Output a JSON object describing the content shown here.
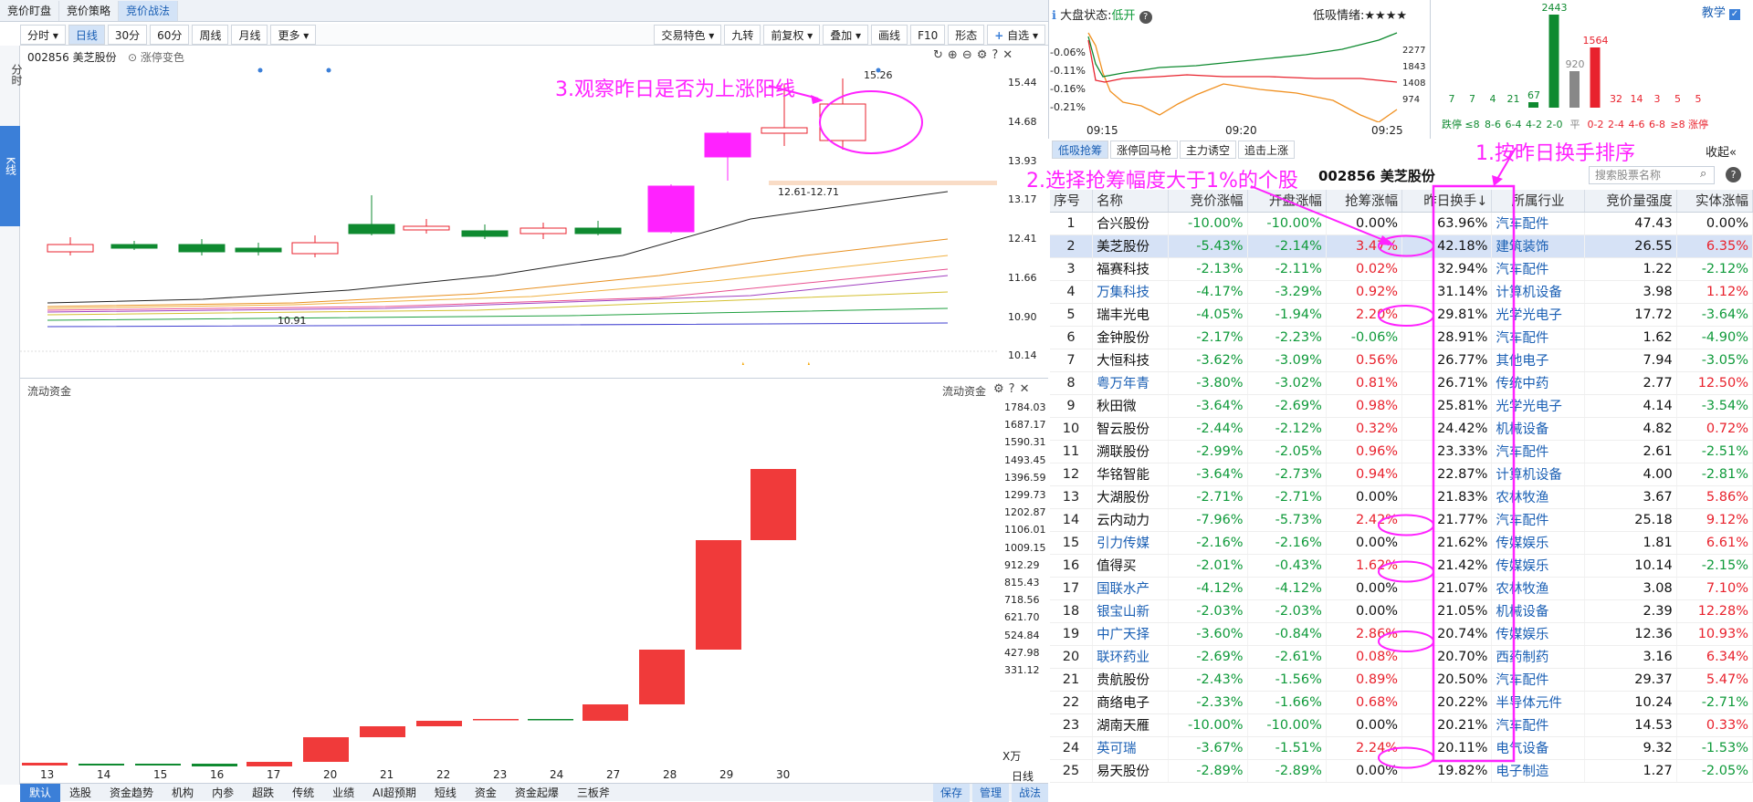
{
  "top_tabs": [
    "竞价盯盘",
    "竞价策略",
    "竞价战法"
  ],
  "teach_label": "教学",
  "toolbar": {
    "left": [
      "分时",
      "日线",
      "30分",
      "60分",
      "周线",
      "月线",
      "更多"
    ],
    "right": [
      "交易特色",
      "九转",
      "前复权",
      "叠加",
      "画线",
      "F10",
      "形态"
    ],
    "add_fav": "自选"
  },
  "left_strip": {
    "fenshi": "分时",
    "kline": "K线"
  },
  "stock": {
    "code_name": "002856 美芝股份",
    "limit_label": "涨停变色"
  },
  "price_axis": [
    "15.44",
    "14.68",
    "13.93",
    "13.17",
    "12.41",
    "11.66",
    "10.90",
    "10.14"
  ],
  "chart_labels": {
    "high": "15.26",
    "low": "10.91",
    "range": "12.61-12.71"
  },
  "lower": {
    "title": "流动资金",
    "title_right": "流动资金",
    "unit": "X万",
    "axis": [
      "1784.03",
      "1687.17",
      "1590.31",
      "1493.45",
      "1396.59",
      "1299.73",
      "1202.87",
      "1106.01",
      "1009.15",
      "912.29",
      "815.43",
      "718.56",
      "621.70",
      "524.84",
      "427.98",
      "331.12"
    ]
  },
  "x_dates": [
    "13",
    "14",
    "15",
    "16",
    "17",
    "20",
    "21",
    "22",
    "23",
    "24",
    "27",
    "28",
    "29",
    "30"
  ],
  "x_unit": "日线",
  "bottom_tabs": [
    "默认",
    "选股",
    "资金趋势",
    "机构",
    "内参",
    "超跌",
    "传统",
    "业绩",
    "AI超预期",
    "短线",
    "资金",
    "资金起爆",
    "三板斧"
  ],
  "bottom_right": [
    "保存",
    "管理",
    "战法"
  ],
  "annotations": {
    "a1": "1.按昨日换手排序",
    "a2": "2.选择抢筹幅度大于1%的个股",
    "a3": "3.观察昨日是否为上涨阳线"
  },
  "market": {
    "status_label": "大盘状态:",
    "status_value": "低开",
    "mood_label": "低吸情绪:",
    "mood_stars": "★★★★",
    "left_axis": [
      "-0.06%",
      "-0.11%",
      "-0.16%",
      "-0.21%"
    ],
    "right_axis": [
      "2277",
      "1843",
      "1408",
      "974"
    ],
    "times": [
      "09:15",
      "09:20",
      "09:25"
    ]
  },
  "distribution": {
    "labels": [
      "跌停",
      "≤8",
      "8-6",
      "6-4",
      "4-2",
      "2-0",
      "平",
      "0-2",
      "2-4",
      "4-6",
      "6-8",
      "≥8",
      "涨停"
    ],
    "values": [
      "7",
      "7",
      "4",
      "21",
      "67",
      "2443",
      "920",
      "1564",
      "32",
      "14",
      "3",
      "5",
      "5"
    ]
  },
  "subtabs": [
    "低吸抢筹",
    "涨停回马枪",
    "主力诱空",
    "追击上涨"
  ],
  "collapse_label": "收起",
  "right_title": "002856  美芝股份",
  "search_placeholder": "搜索股票名称",
  "table": {
    "headers": [
      "序号",
      "名称",
      "竞价涨幅",
      "开盘涨幅",
      "抢筹涨幅",
      "昨日换手↓",
      "所属行业",
      "竞价量强度",
      "实体涨幅"
    ],
    "rows": [
      [
        "1",
        "合兴股份",
        "-10.00%",
        "-10.00%",
        "0.00%",
        "63.96%",
        "汽车配件",
        "47.43",
        "0.00%"
      ],
      [
        "2",
        "美芝股份",
        "-5.43%",
        "-2.14%",
        "3.47%",
        "42.18%",
        "建筑装饰",
        "26.55",
        "6.35%"
      ],
      [
        "3",
        "福赛科技",
        "-2.13%",
        "-2.11%",
        "0.02%",
        "32.94%",
        "汽车配件",
        "1.22",
        "-2.12%"
      ],
      [
        "4",
        "万集科技",
        "-4.17%",
        "-3.29%",
        "0.92%",
        "31.14%",
        "计算机设备",
        "3.98",
        "1.12%"
      ],
      [
        "5",
        "瑞丰光电",
        "-4.05%",
        "-1.94%",
        "2.20%",
        "29.81%",
        "光学光电子",
        "17.72",
        "-3.64%"
      ],
      [
        "6",
        "金钟股份",
        "-2.17%",
        "-2.23%",
        "-0.06%",
        "28.91%",
        "汽车配件",
        "1.62",
        "-4.90%"
      ],
      [
        "7",
        "大恒科技",
        "-3.62%",
        "-3.09%",
        "0.56%",
        "26.77%",
        "其他电子",
        "7.94",
        "-3.05%"
      ],
      [
        "8",
        "粤万年青",
        "-3.80%",
        "-3.02%",
        "0.81%",
        "26.71%",
        "传统中药",
        "2.77",
        "12.50%"
      ],
      [
        "9",
        "秋田微",
        "-3.64%",
        "-2.69%",
        "0.98%",
        "25.81%",
        "光学光电子",
        "4.14",
        "-3.54%"
      ],
      [
        "10",
        "智云股份",
        "-2.44%",
        "-2.12%",
        "0.32%",
        "24.42%",
        "机械设备",
        "4.82",
        "0.72%"
      ],
      [
        "11",
        "溯联股份",
        "-2.99%",
        "-2.05%",
        "0.96%",
        "23.33%",
        "汽车配件",
        "2.61",
        "-2.51%"
      ],
      [
        "12",
        "华铭智能",
        "-3.64%",
        "-2.73%",
        "0.94%",
        "22.87%",
        "计算机设备",
        "4.00",
        "-2.81%"
      ],
      [
        "13",
        "大湖股份",
        "-2.71%",
        "-2.71%",
        "0.00%",
        "21.83%",
        "农林牧渔",
        "3.67",
        "5.86%"
      ],
      [
        "14",
        "云内动力",
        "-7.96%",
        "-5.73%",
        "2.42%",
        "21.77%",
        "汽车配件",
        "25.18",
        "9.12%"
      ],
      [
        "15",
        "引力传媒",
        "-2.16%",
        "-2.16%",
        "0.00%",
        "21.62%",
        "传媒娱乐",
        "1.81",
        "6.61%"
      ],
      [
        "16",
        "值得买",
        "-2.01%",
        "-0.43%",
        "1.62%",
        "21.42%",
        "传媒娱乐",
        "10.14",
        "-2.15%"
      ],
      [
        "17",
        "国联水产",
        "-4.12%",
        "-4.12%",
        "0.00%",
        "21.07%",
        "农林牧渔",
        "3.08",
        "7.10%"
      ],
      [
        "18",
        "银宝山新",
        "-2.03%",
        "-2.03%",
        "0.00%",
        "21.05%",
        "机械设备",
        "2.39",
        "12.28%"
      ],
      [
        "19",
        "中广天择",
        "-3.60%",
        "-0.84%",
        "2.86%",
        "20.74%",
        "传媒娱乐",
        "12.36",
        "10.93%"
      ],
      [
        "20",
        "联环药业",
        "-2.69%",
        "-2.61%",
        "0.08%",
        "20.70%",
        "西药制药",
        "3.16",
        "6.34%"
      ],
      [
        "21",
        "贵航股份",
        "-2.43%",
        "-1.56%",
        "0.89%",
        "20.50%",
        "汽车配件",
        "29.37",
        "5.47%"
      ],
      [
        "22",
        "商络电子",
        "-2.33%",
        "-1.66%",
        "0.68%",
        "20.22%",
        "半导体元件",
        "10.24",
        "-2.71%"
      ],
      [
        "23",
        "湖南天雁",
        "-10.00%",
        "-10.00%",
        "0.00%",
        "20.21%",
        "汽车配件",
        "14.53",
        "0.33%"
      ],
      [
        "24",
        "英可瑞",
        "-3.67%",
        "-1.51%",
        "2.24%",
        "20.11%",
        "电气设备",
        "9.32",
        "-1.53%"
      ],
      [
        "25",
        "易天股份",
        "-2.89%",
        "-2.89%",
        "0.00%",
        "19.82%",
        "电子制造",
        "1.27",
        "-2.05%"
      ]
    ],
    "blue_names": [
      "万集科技",
      "粤万年青",
      "引力传媒",
      "国联水产",
      "银宝山新",
      "中广天择",
      "联环药业",
      "英可瑞"
    ]
  }
}
